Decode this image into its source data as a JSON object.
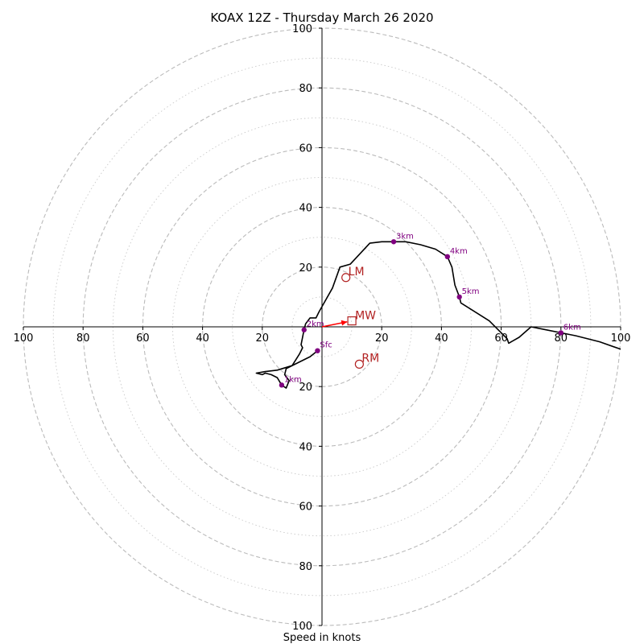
{
  "chart_data": {
    "type": "hodograph",
    "title": "KOAX 12Z - Thursday March 26 2020",
    "xlabel": "Speed in knots",
    "ylabel": "",
    "xlim": [
      -100,
      100
    ],
    "ylim": [
      -100,
      100
    ],
    "rings_major": [
      20,
      40,
      60,
      80,
      100
    ],
    "rings_minor": [
      10,
      30,
      50,
      70,
      90
    ],
    "tick_labels": {
      "x": [
        "100",
        "80",
        "60",
        "40",
        "20",
        "20",
        "40",
        "60",
        "80",
        "100"
      ],
      "y_top": [
        "100",
        "80",
        "60",
        "40",
        "20"
      ],
      "y_bottom": [
        "20",
        "40",
        "60",
        "80",
        "100"
      ]
    },
    "hodograph": [
      [
        -1.5,
        -8.0
      ],
      [
        -4.0,
        -10.0
      ],
      [
        -8.0,
        -12.0
      ],
      [
        -12.0,
        -14.0
      ],
      [
        -12.5,
        -16.0
      ],
      [
        -11.0,
        -18.0
      ],
      [
        -12.0,
        -20.5
      ],
      [
        -13.5,
        -19.5
      ],
      [
        -15.0,
        -17.0
      ],
      [
        -17.0,
        -16.0
      ],
      [
        -19.0,
        -15.5
      ],
      [
        -20.0,
        -16.0
      ],
      [
        -22.0,
        -15.5
      ],
      [
        -19.0,
        -15.0
      ],
      [
        -15.0,
        -14.5
      ],
      [
        -10.0,
        -13.0
      ],
      [
        -7.5,
        -9.0
      ],
      [
        -6.5,
        -7.0
      ],
      [
        -7.0,
        -6.0
      ],
      [
        -6.0,
        -1.0
      ],
      [
        -5.5,
        1.0
      ],
      [
        -4.0,
        3.0
      ],
      [
        -2.0,
        3.0
      ],
      [
        -1.0,
        5.0
      ],
      [
        3.5,
        13.0
      ],
      [
        6.0,
        20.0
      ],
      [
        9.5,
        21.0
      ],
      [
        16.0,
        28.0
      ],
      [
        20.0,
        28.5
      ],
      [
        24.0,
        28.5
      ],
      [
        28.0,
        28.5
      ],
      [
        33.0,
        27.5
      ],
      [
        38.0,
        26.0
      ],
      [
        42.0,
        23.5
      ],
      [
        43.5,
        20.0
      ],
      [
        44.5,
        14.0
      ],
      [
        46.0,
        10.0
      ],
      [
        46.5,
        8.0
      ],
      [
        56.0,
        2.0
      ],
      [
        62.0,
        -4.0
      ],
      [
        62.5,
        -5.5
      ],
      [
        66.0,
        -3.5
      ],
      [
        70.0,
        0.0
      ],
      [
        75.0,
        -1.0
      ],
      [
        80.0,
        -2.0
      ],
      [
        85.0,
        -3.0
      ],
      [
        93.0,
        -5.0
      ],
      [
        100.0,
        -7.5
      ]
    ],
    "height_markers": [
      {
        "label": "Sfc",
        "u": -1.5,
        "v": -8.0
      },
      {
        "label": "1km",
        "u": -13.5,
        "v": -19.5
      },
      {
        "label": "2km",
        "u": -6.0,
        "v": -1.0
      },
      {
        "label": "3km",
        "u": 24.0,
        "v": 28.5
      },
      {
        "label": "4km",
        "u": 42.0,
        "v": 23.5
      },
      {
        "label": "5km",
        "u": 46.0,
        "v": 10.0
      },
      {
        "label": "6km",
        "u": 80.0,
        "v": -2.0
      }
    ],
    "storm_motion": {
      "MW": {
        "label": "MW",
        "u": 10.0,
        "v": 2.0
      },
      "LM": {
        "label": "LM",
        "u": 8.0,
        "v": 16.5
      },
      "RM": {
        "label": "RM",
        "u": 12.5,
        "v": -12.5
      }
    },
    "colors": {
      "trace": "#000000",
      "marker": "#800080",
      "storm_motion": "#b22222",
      "mean_wind_vector": "#ff0000",
      "grid": "#bbbbbb",
      "axes": "#000000"
    }
  }
}
